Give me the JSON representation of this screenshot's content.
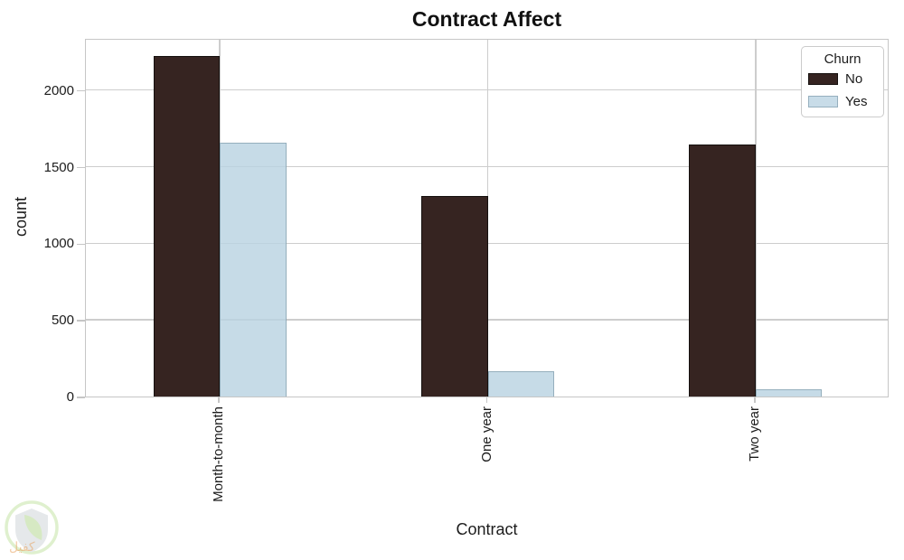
{
  "chart_data": {
    "type": "bar",
    "title": "Contract Affect",
    "xlabel": "Contract",
    "ylabel": "count",
    "categories": [
      "Month-to-month",
      "One year",
      "Two year"
    ],
    "series": [
      {
        "name": "No",
        "values": [
          2220,
          1307,
          1647
        ],
        "color": "#362421"
      },
      {
        "name": "Yes",
        "values": [
          1655,
          166,
          48
        ],
        "color": "#c8dce8"
      }
    ],
    "ylim": [
      0,
      2340
    ],
    "yticks": [
      0,
      500,
      1000,
      1500,
      2000
    ],
    "grid": true,
    "legend_title": "Churn",
    "legend_position": "upper right"
  },
  "colors": {
    "bar_no": "#362421",
    "bar_no_edge": "#15100e",
    "bar_yes_fill": "rgba(186,211,226,0.82)",
    "bar_yes_edge": "rgba(109,138,155,0.55)",
    "grid": "#cdcdcd",
    "spine": "#c6c6c6",
    "text": "#1c1c1c"
  },
  "watermark": {
    "text": "كفيل",
    "circle_color": "#b5dd8c",
    "shield_color": "#c2c9cf",
    "leaf_color": "#a0cc72",
    "text_color": "rgba(232,163,95,0.55)"
  }
}
